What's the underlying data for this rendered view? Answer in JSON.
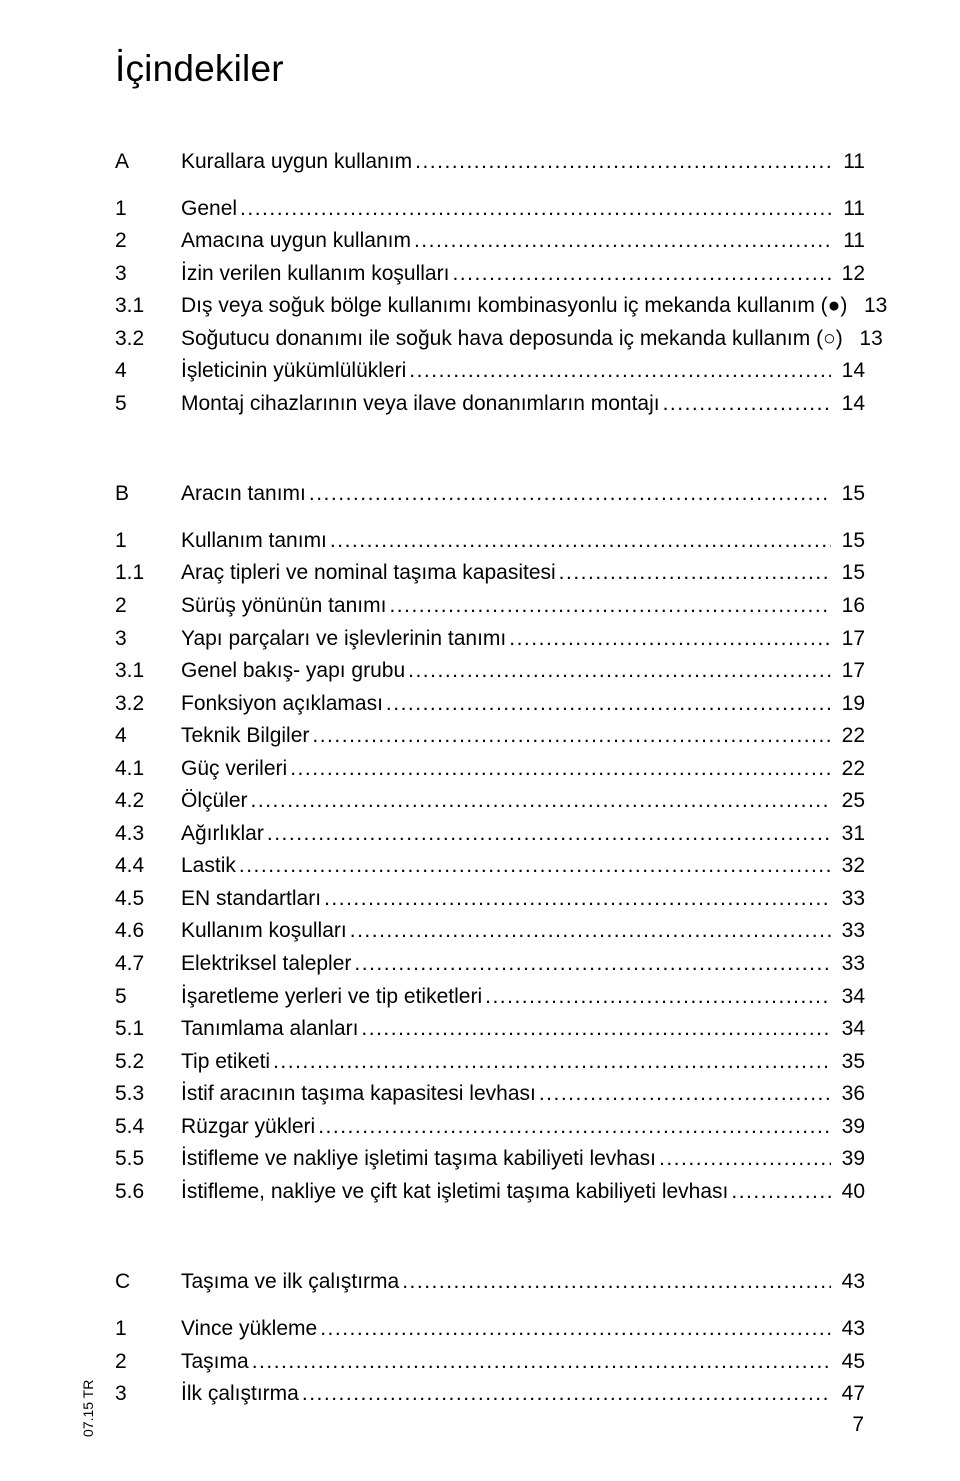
{
  "colors": {
    "text": "#000000",
    "background": "#ffffff"
  },
  "typography": {
    "title_fontsize": 37,
    "body_fontsize": 21,
    "footer_small_fontsize": 14,
    "line_height": 1.55,
    "font_family": "Arial"
  },
  "title": "İçindekiler",
  "footer": {
    "left_vertical": "07.15 TR",
    "page_number": "7"
  },
  "sections": [
    {
      "letter": "A",
      "heading": "Kurallara uygun kullanım",
      "page": "11",
      "items": [
        {
          "num": "1",
          "title": "Genel",
          "page": "11"
        },
        {
          "num": "2",
          "title": "Amacına uygun kullanım",
          "page": "11"
        },
        {
          "num": "3",
          "title": "İzin verilen kullanım koşulları",
          "page": "12"
        },
        {
          "num": "3.1",
          "title": "Dış veya soğuk bölge kullanımı kombinasyonlu iç mekanda kullanım (●)",
          "page": "13",
          "no_leader": true
        },
        {
          "num": "3.2",
          "title": "Soğutucu donanımı ile soğuk hava deposunda iç mekanda kullanım (○)",
          "page": "13",
          "no_leader": true
        },
        {
          "num": "4",
          "title": "İşleticinin yükümlülükleri",
          "page": "14"
        },
        {
          "num": "5",
          "title": "Montaj cihazlarının veya ilave donanımların montajı",
          "page": "14"
        }
      ]
    },
    {
      "letter": "B",
      "heading": "Aracın tanımı",
      "page": "15",
      "items": [
        {
          "num": "1",
          "title": "Kullanım tanımı",
          "page": "15"
        },
        {
          "num": "1.1",
          "title": "Araç tipleri ve nominal taşıma kapasitesi",
          "page": "15"
        },
        {
          "num": "2",
          "title": "Sürüş yönünün tanımı",
          "page": "16"
        },
        {
          "num": "3",
          "title": "Yapı parçaları ve işlevlerinin tanımı",
          "page": "17"
        },
        {
          "num": "3.1",
          "title": "Genel bakış- yapı grubu",
          "page": "17"
        },
        {
          "num": "3.2",
          "title": "Fonksiyon açıklaması",
          "page": "19"
        },
        {
          "num": "4",
          "title": "Teknik Bilgiler",
          "page": "22"
        },
        {
          "num": "4.1",
          "title": "Güç verileri",
          "page": "22"
        },
        {
          "num": "4.2",
          "title": "Ölçüler",
          "page": "25"
        },
        {
          "num": "4.3",
          "title": "Ağırlıklar",
          "page": "31"
        },
        {
          "num": "4.4",
          "title": "Lastik",
          "page": "32"
        },
        {
          "num": "4.5",
          "title": "EN standartları",
          "page": "33"
        },
        {
          "num": "4.6",
          "title": "Kullanım koşulları",
          "page": "33"
        },
        {
          "num": "4.7",
          "title": "Elektriksel talepler",
          "page": "33"
        },
        {
          "num": "5",
          "title": "İşaretleme yerleri ve tip etiketleri",
          "page": "34"
        },
        {
          "num": "5.1",
          "title": "Tanımlama alanları",
          "page": "34"
        },
        {
          "num": "5.2",
          "title": "Tip etiketi",
          "page": "35"
        },
        {
          "num": "5.3",
          "title": "İstif aracının taşıma kapasitesi levhası",
          "page": "36"
        },
        {
          "num": "5.4",
          "title": "Rüzgar yükleri",
          "page": "39"
        },
        {
          "num": "5.5",
          "title": "İstifleme ve nakliye işletimi taşıma kabiliyeti levhası",
          "page": "39"
        },
        {
          "num": "5.6",
          "title": "İstifleme, nakliye ve çift kat işletimi taşıma kabiliyeti levhası",
          "page": "40"
        }
      ]
    },
    {
      "letter": "C",
      "heading": "Taşıma ve ilk çalıştırma",
      "page": "43",
      "items": [
        {
          "num": "1",
          "title": "Vince yükleme",
          "page": "43"
        },
        {
          "num": "2",
          "title": "Taşıma",
          "page": "45"
        },
        {
          "num": "3",
          "title": "İlk çalıştırma",
          "page": "47"
        }
      ]
    }
  ]
}
